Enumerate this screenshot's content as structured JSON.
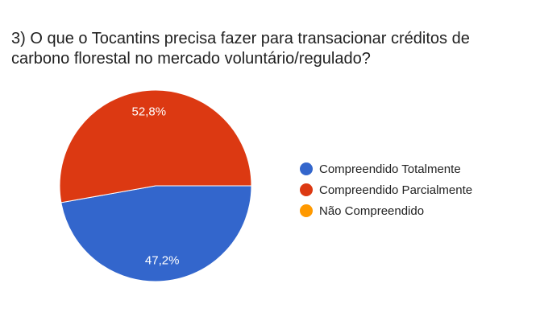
{
  "question": {
    "title": "3) O que o Tocantins precisa fazer para transacionar créditos de carbono florestal no mercado voluntário/regulado?"
  },
  "chart_data": {
    "type": "pie",
    "title": "3) O que o Tocantins precisa fazer para transacionar créditos de carbono florestal no mercado voluntário/regulado?",
    "legend_position": "right",
    "slices": [
      {
        "label": "Compreendido Totalmente",
        "value": 47.2,
        "value_label": "47,2%",
        "color": "#3366cc"
      },
      {
        "label": "Compreendido Parcialmente",
        "value": 52.8,
        "value_label": "52,8%",
        "color": "#dc3912"
      },
      {
        "label": "Não Compreendido",
        "value": 0,
        "value_label": "",
        "color": "#ff9900"
      }
    ]
  }
}
